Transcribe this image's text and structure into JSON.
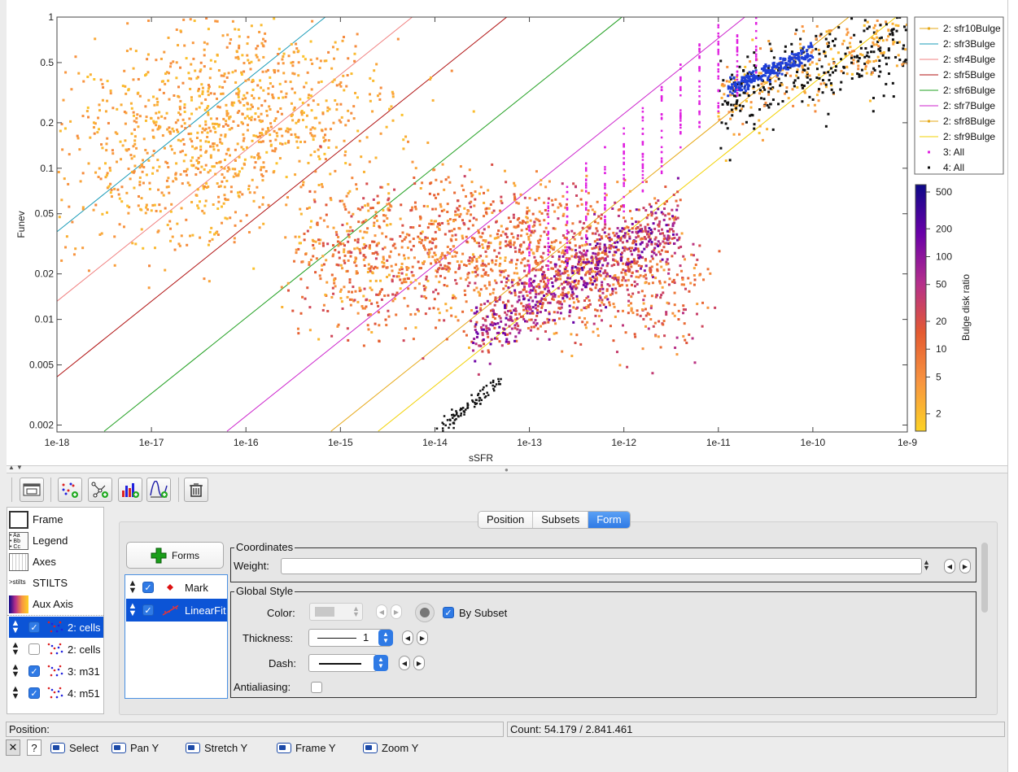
{
  "plot": {
    "x_title": "sSFR",
    "y_title": "Funev",
    "x_ticks": [
      "1e-18",
      "1e-17",
      "1e-16",
      "1e-15",
      "1e-14",
      "1e-13",
      "1e-12",
      "1e-11",
      "1e-10",
      "1e-9"
    ],
    "y_ticks": [
      "1",
      "0.5",
      "0.2",
      "0.1",
      "0.05",
      "0.02",
      "0.01",
      "0.005",
      "0.002"
    ],
    "legend": [
      {
        "label": "2: sfr10Bulge",
        "color": "#e6a817",
        "style": "line-mark"
      },
      {
        "label": "2: sfr3Bulge",
        "color": "#1a9bb8",
        "style": "line"
      },
      {
        "label": "2: sfr4Bulge",
        "color": "#f08080",
        "style": "line"
      },
      {
        "label": "2: sfr5Bulge",
        "color": "#b01010",
        "style": "line"
      },
      {
        "label": "2: sfr6Bulge",
        "color": "#22a022",
        "style": "line"
      },
      {
        "label": "2: sfr7Bulge",
        "color": "#cc22cc",
        "style": "line"
      },
      {
        "label": "2: sfr8Bulge",
        "color": "#e6a817",
        "style": "line-mark"
      },
      {
        "label": "2: sfr9Bulge",
        "color": "#f2d100",
        "style": "line"
      },
      {
        "label": "3: All",
        "color": "#e020e0",
        "style": "mark"
      },
      {
        "label": "4: All",
        "color": "#111111",
        "style": "mark"
      }
    ],
    "colorbar": {
      "title": "Bulge disk ratio",
      "ticks": [
        "500",
        "200",
        "100",
        "50",
        "20",
        "10",
        "5",
        "2"
      ]
    }
  },
  "toolbar": {
    "icons": [
      "window-icon",
      "add-scatter-icon",
      "add-network-icon",
      "add-histogram-icon",
      "add-function-icon",
      "delete-icon"
    ]
  },
  "controls": [
    {
      "label": "Frame",
      "icon": "frame-icon"
    },
    {
      "label": "Legend",
      "icon": "legend-icon"
    },
    {
      "label": "Axes",
      "icon": "axes-icon"
    },
    {
      "label": "STILTS",
      "icon": "stilts-icon"
    },
    {
      "label": "Aux Axis",
      "icon": "aux-axis-icon"
    }
  ],
  "layers": [
    {
      "label": "2: cells",
      "checked": true,
      "selected": true
    },
    {
      "label": "2: cells",
      "checked": false,
      "selected": false
    },
    {
      "label": "3: m31",
      "checked": true,
      "selected": false
    },
    {
      "label": "4: m51",
      "checked": true,
      "selected": false
    }
  ],
  "tabs": [
    "Position",
    "Subsets",
    "Form"
  ],
  "active_tab": "Form",
  "forms_button": "Forms",
  "forms": [
    {
      "label": "Mark",
      "checked": true,
      "selected": false
    },
    {
      "label": "LinearFit",
      "checked": true,
      "selected": true
    }
  ],
  "coordinates": {
    "title": "Coordinates",
    "weight_label": "Weight:",
    "weight_value": ""
  },
  "global_style": {
    "title": "Global Style",
    "color_label": "Color:",
    "by_subset_label": "By Subset",
    "by_subset_checked": true,
    "thickness_label": "Thickness:",
    "thickness_value": "1",
    "dash_label": "Dash:",
    "antialiasing_label": "Antialiasing:",
    "antialiasing_checked": false
  },
  "status": {
    "position_label": "Position:",
    "count_text": "Count: 54.179 / 2.841.461"
  },
  "bottom_buttons": [
    {
      "label": "Select"
    },
    {
      "label": "Pan Y"
    },
    {
      "label": "Stretch Y"
    },
    {
      "label": "Frame Y"
    },
    {
      "label": "Zoom Y"
    }
  ],
  "bottom_small": {
    "close": "✕",
    "help": "?"
  }
}
